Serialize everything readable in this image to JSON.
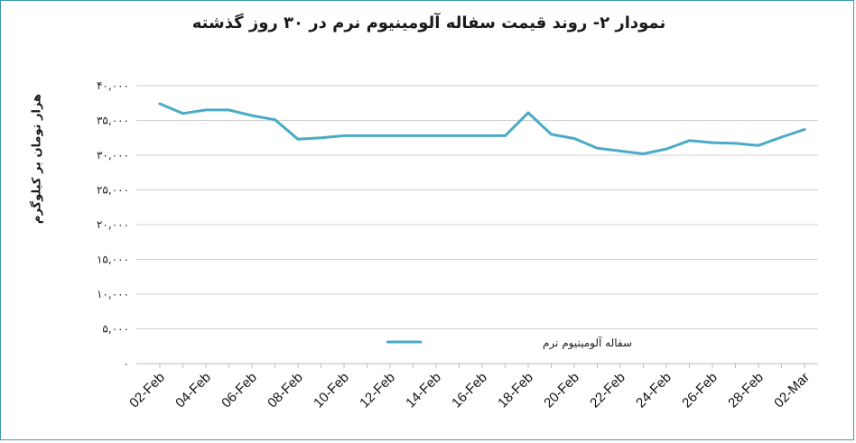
{
  "chart_data": {
    "type": "line",
    "title": "نمودار ۲- روند قیمت سفاله آلومینیوم نرم در ۳۰ روز گذشته",
    "xlabel": "",
    "ylabel": "هزار تومان بر کیلوگرم",
    "ylim": [
      0,
      40000
    ],
    "yticks": [
      0,
      5000,
      10000,
      15000,
      20000,
      25000,
      30000,
      35000,
      40000
    ],
    "ytick_labels": [
      "۰",
      "۵,۰۰۰",
      "۱۰,۰۰۰",
      "۱۵,۰۰۰",
      "۲۰,۰۰۰",
      "۲۵,۰۰۰",
      "۳۰,۰۰۰",
      "۳۵,۰۰۰",
      "۴۰,۰۰۰"
    ],
    "grid": true,
    "legend_position": "bottom-center",
    "x": [
      "02-Feb",
      "03-Feb",
      "04-Feb",
      "05-Feb",
      "06-Feb",
      "07-Feb",
      "08-Feb",
      "09-Feb",
      "10-Feb",
      "11-Feb",
      "12-Feb",
      "13-Feb",
      "14-Feb",
      "15-Feb",
      "16-Feb",
      "17-Feb",
      "18-Feb",
      "19-Feb",
      "20-Feb",
      "21-Feb",
      "22-Feb",
      "23-Feb",
      "24-Feb",
      "25-Feb",
      "26-Feb",
      "27-Feb",
      "28-Feb",
      "01-Mar",
      "02-Mar"
    ],
    "x_tick_labels": [
      "02-Feb",
      "04-Feb",
      "06-Feb",
      "08-Feb",
      "10-Feb",
      "12-Feb",
      "14-Feb",
      "16-Feb",
      "18-Feb",
      "20-Feb",
      "22-Feb",
      "24-Feb",
      "26-Feb",
      "28-Feb",
      "02-Mar"
    ],
    "series": [
      {
        "name": "سفاله آلومینیوم نرم",
        "color": "#4aabc6",
        "values": [
          37400,
          36000,
          36500,
          36500,
          35700,
          35100,
          32300,
          32500,
          32800,
          32800,
          32800,
          32800,
          32800,
          32800,
          32800,
          32800,
          36100,
          33000,
          32400,
          31000,
          30600,
          30200,
          30900,
          32100,
          31800,
          31700,
          31400,
          32600,
          33700
        ]
      }
    ]
  }
}
